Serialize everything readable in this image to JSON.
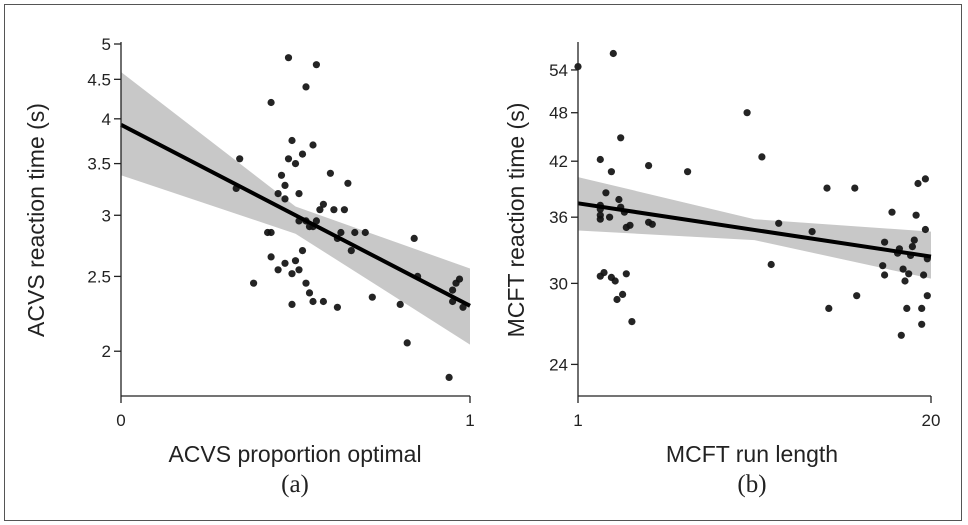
{
  "chart_data": [
    {
      "type": "scatter",
      "panel_label": "(a)",
      "xlabel": "ACVS proportion optimal",
      "ylabel": "ACVS reaction time (s)",
      "xlim": [
        0,
        1
      ],
      "ylim": [
        1.75,
        5
      ],
      "yscale": "log",
      "xticks": [
        0,
        1
      ],
      "yticks": [
        2,
        2.5,
        3,
        3.5,
        4,
        4.5,
        5
      ],
      "grid": false,
      "point_color": "#111111",
      "fit": {
        "x": [
          0,
          1
        ],
        "y": [
          3.93,
          2.29
        ]
      },
      "ci_band": {
        "x": [
          0,
          0.5,
          1
        ],
        "upper": [
          4.6,
          3.08,
          2.56
        ],
        "lower": [
          3.38,
          2.84,
          2.04
        ]
      },
      "points": [
        {
          "x": 0.34,
          "y": 3.55
        },
        {
          "x": 0.33,
          "y": 3.25
        },
        {
          "x": 0.43,
          "y": 4.2
        },
        {
          "x": 0.48,
          "y": 4.8
        },
        {
          "x": 0.56,
          "y": 4.7
        },
        {
          "x": 0.53,
          "y": 4.4
        },
        {
          "x": 0.38,
          "y": 2.45
        },
        {
          "x": 0.42,
          "y": 2.85
        },
        {
          "x": 0.43,
          "y": 2.85
        },
        {
          "x": 0.43,
          "y": 2.65
        },
        {
          "x": 0.45,
          "y": 3.2
        },
        {
          "x": 0.46,
          "y": 3.38
        },
        {
          "x": 0.47,
          "y": 3.28
        },
        {
          "x": 0.47,
          "y": 3.15
        },
        {
          "x": 0.48,
          "y": 3.55
        },
        {
          "x": 0.49,
          "y": 3.75
        },
        {
          "x": 0.5,
          "y": 3.5
        },
        {
          "x": 0.51,
          "y": 3.2
        },
        {
          "x": 0.52,
          "y": 3.6
        },
        {
          "x": 0.53,
          "y": 2.95
        },
        {
          "x": 0.55,
          "y": 3.7
        },
        {
          "x": 0.55,
          "y": 2.9
        },
        {
          "x": 0.57,
          "y": 3.05
        },
        {
          "x": 0.58,
          "y": 3.1
        },
        {
          "x": 0.6,
          "y": 3.4
        },
        {
          "x": 0.61,
          "y": 3.05
        },
        {
          "x": 0.62,
          "y": 2.8
        },
        {
          "x": 0.63,
          "y": 2.85
        },
        {
          "x": 0.64,
          "y": 3.05
        },
        {
          "x": 0.65,
          "y": 3.3
        },
        {
          "x": 0.66,
          "y": 2.7
        },
        {
          "x": 0.67,
          "y": 2.85
        },
        {
          "x": 0.7,
          "y": 2.85
        },
        {
          "x": 0.45,
          "y": 2.55
        },
        {
          "x": 0.47,
          "y": 2.6
        },
        {
          "x": 0.49,
          "y": 2.52
        },
        {
          "x": 0.5,
          "y": 2.62
        },
        {
          "x": 0.51,
          "y": 2.55
        },
        {
          "x": 0.52,
          "y": 2.7
        },
        {
          "x": 0.53,
          "y": 2.45
        },
        {
          "x": 0.54,
          "y": 2.38
        },
        {
          "x": 0.55,
          "y": 2.32
        },
        {
          "x": 0.49,
          "y": 2.3
        },
        {
          "x": 0.58,
          "y": 2.32
        },
        {
          "x": 0.62,
          "y": 2.28
        },
        {
          "x": 0.54,
          "y": 2.9
        },
        {
          "x": 0.56,
          "y": 2.95
        },
        {
          "x": 0.51,
          "y": 2.95
        },
        {
          "x": 0.72,
          "y": 2.35
        },
        {
          "x": 0.8,
          "y": 2.3
        },
        {
          "x": 0.82,
          "y": 2.05
        },
        {
          "x": 0.84,
          "y": 2.8
        },
        {
          "x": 0.85,
          "y": 2.5
        },
        {
          "x": 0.95,
          "y": 2.4
        },
        {
          "x": 0.95,
          "y": 2.32
        },
        {
          "x": 0.96,
          "y": 2.45
        },
        {
          "x": 0.97,
          "y": 2.48
        },
        {
          "x": 0.98,
          "y": 2.28
        },
        {
          "x": 0.94,
          "y": 1.85
        }
      ]
    },
    {
      "type": "scatter",
      "panel_label": "(b)",
      "xlabel": "MCFT run length",
      "ylabel": "MCFT reaction time (s)",
      "xlim": [
        1,
        20
      ],
      "ylim": [
        22,
        58
      ],
      "yscale": "log",
      "xticks": [
        1,
        20
      ],
      "yticks": [
        24,
        30,
        36,
        42,
        48,
        54
      ],
      "grid": false,
      "point_color": "#111111",
      "fit": {
        "x": [
          1,
          20
        ],
        "y": [
          37.4,
          32.3
        ]
      },
      "ci_band": {
        "x": [
          1,
          10.5,
          20
        ],
        "upper": [
          40.2,
          35.8,
          34.6
        ],
        "lower": [
          34.7,
          33.8,
          30.4
        ]
      },
      "points": [
        {
          "x": 1.0,
          "y": 54.5
        },
        {
          "x": 2.9,
          "y": 56.5
        },
        {
          "x": 2.2,
          "y": 42.2
        },
        {
          "x": 2.8,
          "y": 40.8
        },
        {
          "x": 3.3,
          "y": 44.8
        },
        {
          "x": 4.8,
          "y": 41.5
        },
        {
          "x": 2.2,
          "y": 37.2
        },
        {
          "x": 2.2,
          "y": 36.8
        },
        {
          "x": 2.2,
          "y": 36.2
        },
        {
          "x": 2.2,
          "y": 35.8
        },
        {
          "x": 2.5,
          "y": 38.5
        },
        {
          "x": 2.7,
          "y": 36.0
        },
        {
          "x": 3.2,
          "y": 37.8
        },
        {
          "x": 3.3,
          "y": 37.0
        },
        {
          "x": 3.5,
          "y": 36.5
        },
        {
          "x": 3.6,
          "y": 35.0
        },
        {
          "x": 3.8,
          "y": 35.2
        },
        {
          "x": 4.8,
          "y": 35.5
        },
        {
          "x": 5.0,
          "y": 35.3
        },
        {
          "x": 2.2,
          "y": 30.6
        },
        {
          "x": 2.4,
          "y": 30.9
        },
        {
          "x": 2.8,
          "y": 30.5
        },
        {
          "x": 3.0,
          "y": 30.2
        },
        {
          "x": 3.1,
          "y": 28.7
        },
        {
          "x": 3.4,
          "y": 29.1
        },
        {
          "x": 3.6,
          "y": 30.8
        },
        {
          "x": 3.9,
          "y": 27.0
        },
        {
          "x": 6.9,
          "y": 40.8
        },
        {
          "x": 10.1,
          "y": 48.0
        },
        {
          "x": 10.9,
          "y": 42.5
        },
        {
          "x": 11.4,
          "y": 31.6
        },
        {
          "x": 11.8,
          "y": 35.4
        },
        {
          "x": 13.6,
          "y": 34.6
        },
        {
          "x": 14.4,
          "y": 39.0
        },
        {
          "x": 14.5,
          "y": 28.0
        },
        {
          "x": 15.9,
          "y": 39.0
        },
        {
          "x": 16.0,
          "y": 29.0
        },
        {
          "x": 17.4,
          "y": 31.5
        },
        {
          "x": 17.5,
          "y": 30.7
        },
        {
          "x": 17.5,
          "y": 33.6
        },
        {
          "x": 17.9,
          "y": 36.5
        },
        {
          "x": 18.2,
          "y": 32.6
        },
        {
          "x": 18.3,
          "y": 33.0
        },
        {
          "x": 18.4,
          "y": 26.0
        },
        {
          "x": 18.5,
          "y": 31.2
        },
        {
          "x": 18.6,
          "y": 30.2
        },
        {
          "x": 18.7,
          "y": 28.0
        },
        {
          "x": 18.8,
          "y": 30.8
        },
        {
          "x": 18.9,
          "y": 32.4
        },
        {
          "x": 19.0,
          "y": 33.2
        },
        {
          "x": 19.1,
          "y": 33.8
        },
        {
          "x": 19.2,
          "y": 36.2
        },
        {
          "x": 19.3,
          "y": 39.5
        },
        {
          "x": 19.5,
          "y": 26.8
        },
        {
          "x": 19.5,
          "y": 28.0
        },
        {
          "x": 19.6,
          "y": 30.7
        },
        {
          "x": 19.7,
          "y": 40.0
        },
        {
          "x": 19.7,
          "y": 34.8
        },
        {
          "x": 19.8,
          "y": 32.1
        },
        {
          "x": 19.8,
          "y": 29.0
        }
      ]
    }
  ]
}
